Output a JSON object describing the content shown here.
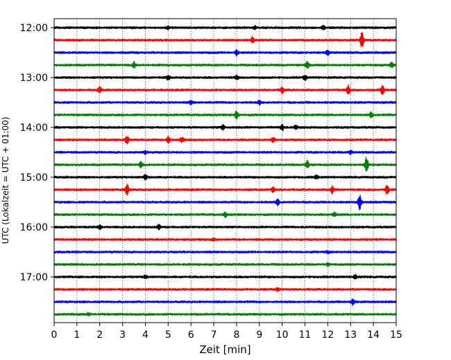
{
  "chart_data": {
    "type": "line",
    "title": "",
    "xlabel": "Zeit  [min]",
    "ylabel": "UTC (Lokalzeit = UTC + 01:00)",
    "xlim": [
      0,
      15
    ],
    "x_ticks": [
      "0",
      "1",
      "2",
      "3",
      "4",
      "5",
      "6",
      "7",
      "8",
      "9",
      "10",
      "11",
      "12",
      "13",
      "14",
      "15"
    ],
    "y_ticks": [
      "12:00",
      "13:00",
      "14:00",
      "15:00",
      "16:00",
      "17:00"
    ],
    "grid": "vertical dotted",
    "trace_interval_minutes": 15,
    "trace_colors": [
      "#000000",
      "#ff0000",
      "#0000ff",
      "#008000"
    ],
    "traces": [
      {
        "start": "12:00",
        "events": [
          [
            5.0,
            0.5
          ],
          [
            8.8,
            0.5
          ],
          [
            11.8,
            0.6
          ]
        ]
      },
      {
        "start": "12:15",
        "events": [
          [
            8.7,
            1.0
          ],
          [
            13.5,
            3.0
          ]
        ]
      },
      {
        "start": "12:30",
        "events": [
          [
            8.0,
            0.9
          ],
          [
            12.0,
            0.8
          ]
        ]
      },
      {
        "start": "12:45",
        "events": [
          [
            3.5,
            1.0
          ],
          [
            11.1,
            1.2
          ],
          [
            14.8,
            0.7
          ]
        ]
      },
      {
        "start": "13:00",
        "events": [
          [
            5.0,
            0.8
          ],
          [
            8.0,
            0.7
          ],
          [
            11.0,
            0.8
          ]
        ]
      },
      {
        "start": "13:15",
        "events": [
          [
            2.0,
            1.0
          ],
          [
            10.0,
            1.0
          ],
          [
            12.9,
            1.5
          ],
          [
            14.4,
            1.5
          ]
        ]
      },
      {
        "start": "13:30",
        "events": [
          [
            6.0,
            0.6
          ],
          [
            9.0,
            0.6
          ]
        ]
      },
      {
        "start": "13:45",
        "events": [
          [
            8.0,
            1.2
          ],
          [
            13.9,
            0.8
          ]
        ]
      },
      {
        "start": "14:00",
        "events": [
          [
            7.4,
            0.8
          ],
          [
            10.0,
            1.0
          ],
          [
            10.6,
            0.6
          ]
        ]
      },
      {
        "start": "14:15",
        "events": [
          [
            3.2,
            1.2
          ],
          [
            5.0,
            1.0
          ],
          [
            5.6,
            0.8
          ],
          [
            9.6,
            0.7
          ]
        ]
      },
      {
        "start": "14:30",
        "events": [
          [
            4.0,
            0.5
          ],
          [
            13.0,
            0.5
          ]
        ]
      },
      {
        "start": "14:45",
        "events": [
          [
            3.8,
            0.9
          ],
          [
            11.1,
            1.2
          ],
          [
            13.7,
            2.8
          ]
        ]
      },
      {
        "start": "15:00",
        "events": [
          [
            4.0,
            0.8
          ],
          [
            11.5,
            0.6
          ]
        ]
      },
      {
        "start": "15:15",
        "events": [
          [
            3.2,
            1.8
          ],
          [
            9.6,
            0.9
          ],
          [
            12.2,
            1.2
          ],
          [
            14.6,
            1.4
          ]
        ]
      },
      {
        "start": "15:30",
        "events": [
          [
            9.8,
            1.0
          ],
          [
            13.4,
            2.4
          ]
        ]
      },
      {
        "start": "15:45",
        "events": [
          [
            7.5,
            0.7
          ],
          [
            12.3,
            0.6
          ]
        ]
      },
      {
        "start": "16:00",
        "events": [
          [
            2.0,
            0.7
          ],
          [
            4.6,
            0.8
          ]
        ]
      },
      {
        "start": "16:15",
        "events": [
          [
            7.0,
            0.4
          ]
        ]
      },
      {
        "start": "16:30",
        "events": [
          [
            12.0,
            0.4
          ]
        ]
      },
      {
        "start": "16:45",
        "events": [
          [
            12.0,
            0.4
          ]
        ]
      },
      {
        "start": "17:00",
        "events": [
          [
            4.0,
            0.5
          ],
          [
            13.2,
            0.7
          ]
        ]
      },
      {
        "start": "17:15",
        "events": [
          [
            9.8,
            0.5
          ]
        ]
      },
      {
        "start": "17:30",
        "events": [
          [
            13.1,
            1.0
          ]
        ]
      },
      {
        "start": "17:45",
        "events": [
          [
            1.5,
            0.4
          ]
        ]
      }
    ]
  }
}
